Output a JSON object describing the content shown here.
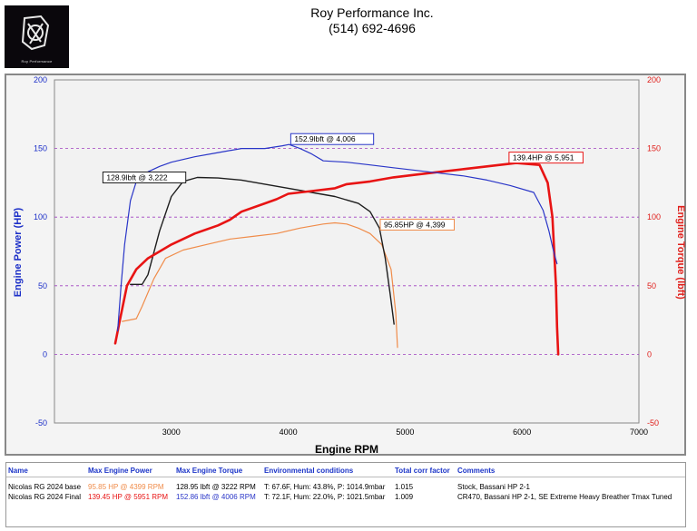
{
  "header": {
    "logo_text": "Roy Performance",
    "company": "Roy Performance Inc.",
    "phone": "(514) 692-4696"
  },
  "colors": {
    "hp_axis": "#1c2fc8",
    "torque_axis": "#e0201c",
    "base_hp": "#f08c4a",
    "base_torque": "#1e1e1e",
    "final_hp": "#e81414",
    "final_torque": "#2a36c8",
    "grid": "#a040c0"
  },
  "chart_data": {
    "type": "line",
    "xlabel": "Engine RPM",
    "ylabel_left": "Engine Power (HP)",
    "ylabel_right": "Engine Torque (lbft)",
    "xlim": [
      2000,
      7000
    ],
    "ylim": [
      -50,
      200
    ],
    "x_ticks": [
      "3000",
      "4000",
      "5000",
      "6000",
      "7000"
    ],
    "y_ticks": [
      "200",
      "150",
      "100",
      "50",
      "0",
      "-50"
    ],
    "grid": "horizontal dashed at 150, 100, 50, 0",
    "series": [
      {
        "name": "Nicolas RG 2024 base HP",
        "color": "#f08c4a",
        "width": 1.2,
        "points": [
          [
            2580,
            24
          ],
          [
            2700,
            26
          ],
          [
            2750,
            35
          ],
          [
            2850,
            55
          ],
          [
            2950,
            70
          ],
          [
            3100,
            76
          ],
          [
            3300,
            80
          ],
          [
            3500,
            84
          ],
          [
            3700,
            86
          ],
          [
            3900,
            88
          ],
          [
            4100,
            92
          ],
          [
            4300,
            95
          ],
          [
            4399,
            95.85
          ],
          [
            4500,
            95
          ],
          [
            4600,
            92
          ],
          [
            4700,
            88
          ],
          [
            4800,
            80
          ],
          [
            4880,
            62
          ],
          [
            4920,
            30
          ],
          [
            4935,
            5
          ]
        ]
      },
      {
        "name": "Nicolas RG 2024 base Torque",
        "color": "#1e1e1e",
        "width": 1.4,
        "points": [
          [
            2650,
            51
          ],
          [
            2750,
            51
          ],
          [
            2800,
            58
          ],
          [
            2900,
            90
          ],
          [
            3000,
            115
          ],
          [
            3100,
            126
          ],
          [
            3222,
            128.9
          ],
          [
            3400,
            128.5
          ],
          [
            3600,
            127
          ],
          [
            3800,
            124
          ],
          [
            4000,
            121
          ],
          [
            4200,
            118
          ],
          [
            4400,
            115
          ],
          [
            4600,
            110
          ],
          [
            4700,
            104
          ],
          [
            4780,
            92
          ],
          [
            4830,
            70
          ],
          [
            4870,
            45
          ],
          [
            4905,
            22
          ]
        ]
      },
      {
        "name": "Nicolas RG 2024 Final HP",
        "color": "#e81414",
        "width": 2.6,
        "points": [
          [
            2520,
            8
          ],
          [
            2560,
            25
          ],
          [
            2620,
            50
          ],
          [
            2700,
            62
          ],
          [
            2800,
            70
          ],
          [
            3000,
            80
          ],
          [
            3200,
            88
          ],
          [
            3400,
            94
          ],
          [
            3500,
            98
          ],
          [
            3600,
            104
          ],
          [
            3800,
            110
          ],
          [
            3900,
            113
          ],
          [
            4000,
            117
          ],
          [
            4200,
            119
          ],
          [
            4400,
            121
          ],
          [
            4500,
            124
          ],
          [
            4700,
            126
          ],
          [
            4900,
            129
          ],
          [
            5100,
            131
          ],
          [
            5300,
            133
          ],
          [
            5500,
            135
          ],
          [
            5700,
            137
          ],
          [
            5951,
            139.4
          ],
          [
            6150,
            138
          ],
          [
            6220,
            125
          ],
          [
            6260,
            100
          ],
          [
            6290,
            50
          ],
          [
            6300,
            20
          ],
          [
            6310,
            0
          ]
        ]
      },
      {
        "name": "Nicolas RG 2024 Final Torque",
        "color": "#2a36c8",
        "width": 1.2,
        "points": [
          [
            2540,
            17
          ],
          [
            2570,
            50
          ],
          [
            2600,
            80
          ],
          [
            2650,
            112
          ],
          [
            2700,
            126
          ],
          [
            2800,
            133
          ],
          [
            2900,
            137
          ],
          [
            3000,
            140
          ],
          [
            3200,
            144
          ],
          [
            3400,
            147
          ],
          [
            3600,
            150
          ],
          [
            3800,
            150
          ],
          [
            3950,
            152
          ],
          [
            4006,
            152.9
          ],
          [
            4100,
            150
          ],
          [
            4200,
            146
          ],
          [
            4300,
            141
          ],
          [
            4500,
            140
          ],
          [
            4700,
            138
          ],
          [
            4900,
            136
          ],
          [
            5100,
            134
          ],
          [
            5300,
            132
          ],
          [
            5500,
            130
          ],
          [
            5700,
            127
          ],
          [
            5900,
            123
          ],
          [
            6100,
            118
          ],
          [
            6180,
            105
          ],
          [
            6230,
            90
          ],
          [
            6270,
            75
          ],
          [
            6300,
            66
          ]
        ]
      }
    ],
    "annotations": [
      {
        "text": "152.9lbft @ 4,006",
        "color": "#2a36c8",
        "x": 4006,
        "y": 152.9
      },
      {
        "text": "128.9lbft @ 3,222",
        "color": "#1e1e1e",
        "x": 3222,
        "y": 128.9
      },
      {
        "text": "95.85HP @ 4,399",
        "color": "#f08c4a",
        "x": 4399,
        "y": 95.85
      },
      {
        "text": "139.4HP @ 5,951",
        "color": "#e81414",
        "x": 5951,
        "y": 139.4
      }
    ]
  },
  "table": {
    "headers": [
      "Name",
      "Max Engine Power",
      "Max Engine Torque",
      "Environmental conditions",
      "Total corr factor",
      "Comments"
    ],
    "rows": [
      {
        "name": "Nicolas RG 2024 base",
        "power": "95.85 HP @ 4399 RPM",
        "power_color": "#f08c4a",
        "torque": "128.95 lbft @ 3222 RPM",
        "torque_color": "#000000",
        "env": "T: 67.6F, Hum: 43.8%, P: 1014.9mbar",
        "corr": "1.015",
        "comments": "Stock, Bassani HP 2-1"
      },
      {
        "name": "Nicolas RG 2024 Final",
        "power": "139.45 HP @ 5951 RPM",
        "power_color": "#e81414",
        "torque": "152.86 lbft @ 4006 RPM",
        "torque_color": "#2a36c8",
        "env": "T: 72.1F, Hum: 22.0%, P: 1021.5mbar",
        "corr": "1.009",
        "comments": "CR470, Bassani HP 2-1, SE Extreme Heavy Breather Tmax Tuned"
      }
    ]
  }
}
